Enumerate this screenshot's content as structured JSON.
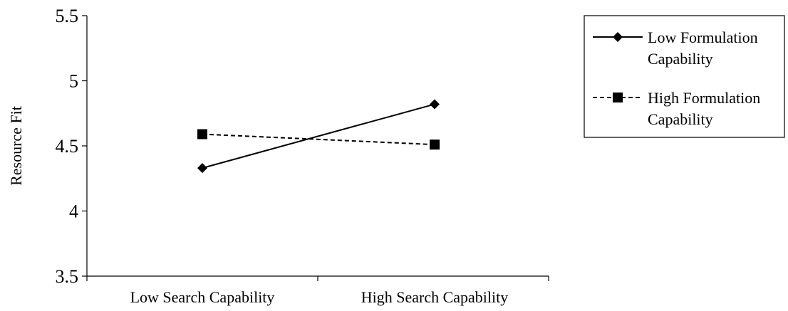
{
  "chart_data": {
    "type": "line",
    "title": "",
    "xlabel": "",
    "ylabel": "Resource Fit",
    "categories": [
      "Low Search Capability",
      "High Search Capability"
    ],
    "ylim": [
      3.5,
      5.5
    ],
    "yticks": [
      "3.5",
      "4",
      "4.5",
      "5",
      "5.5"
    ],
    "grid": false,
    "legend_position": "right",
    "series": [
      {
        "name": "Low Formulation Capability",
        "name_lines": [
          "Low Formulation",
          "Capability"
        ],
        "values": [
          4.33,
          4.82
        ],
        "line_style": "solid",
        "marker": "diamond",
        "color": "#000000"
      },
      {
        "name": "High Formulation Capability",
        "name_lines": [
          "High Formulation",
          "Capability"
        ],
        "values": [
          4.59,
          4.51
        ],
        "line_style": "dashed",
        "marker": "square",
        "color": "#000000"
      }
    ]
  }
}
